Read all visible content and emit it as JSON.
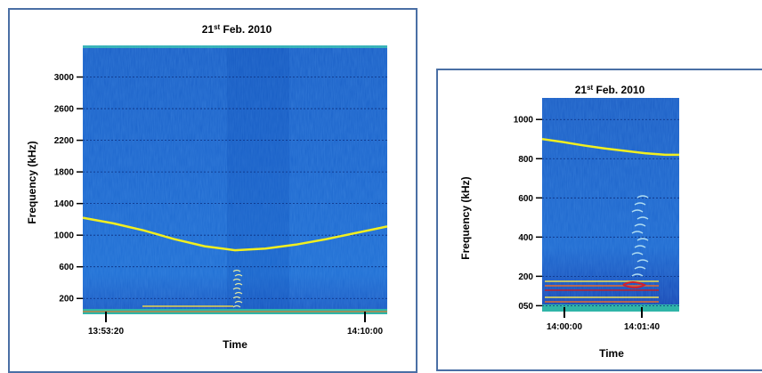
{
  "colors": {
    "frame": "#4a6fa5",
    "curve": "#f2ef1f",
    "background": "#1a63c8"
  },
  "chart_data": [
    {
      "type": "heatmap",
      "title_main": "21",
      "title_sup": "st",
      "title_rest": " Feb. 2010",
      "xlabel": "Time",
      "ylabel": "Frequency (kHz)",
      "ylim": [
        0,
        3400
      ],
      "y_ticks": [
        200,
        600,
        1000,
        1400,
        1800,
        2200,
        2600,
        3000
      ],
      "y_tick_labels": [
        "200",
        "600",
        "1000",
        "1400",
        "1800",
        "2200",
        "2600",
        "3000"
      ],
      "x_ticks": [
        "13:53:20",
        "14:10:00"
      ],
      "curve": {
        "x": [
          0,
          0.1,
          0.2,
          0.3,
          0.4,
          0.5,
          0.6,
          0.7,
          0.8,
          0.9,
          1.0
        ],
        "y": [
          1220,
          1150,
          1060,
          950,
          860,
          810,
          830,
          880,
          950,
          1030,
          1110
        ]
      }
    },
    {
      "type": "heatmap",
      "title_main": "21",
      "title_sup": "st",
      "title_rest": " Feb. 2010",
      "xlabel": "Time",
      "ylabel": "Frequency (kHz)",
      "ylim": [
        20,
        1110
      ],
      "y_ticks": [
        50,
        200,
        400,
        600,
        800,
        1000
      ],
      "y_tick_labels": [
        "050",
        "200",
        "400",
        "600",
        "800",
        "1000"
      ],
      "x_ticks": [
        "14:00:00",
        "14:01:40"
      ],
      "curve": {
        "x": [
          0,
          0.15,
          0.3,
          0.45,
          0.6,
          0.75,
          0.9,
          1.0
        ],
        "y": [
          900,
          885,
          868,
          853,
          840,
          828,
          820,
          820
        ]
      }
    }
  ]
}
